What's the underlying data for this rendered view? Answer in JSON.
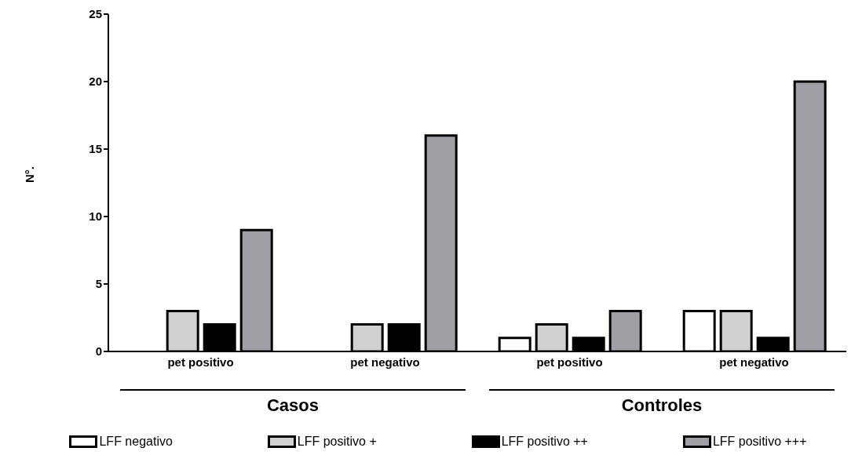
{
  "chart_data": {
    "type": "bar",
    "ylabel": "N°.",
    "categories": [
      "pet positivo",
      "pet negativo",
      "pet positivo",
      "pet negativo"
    ],
    "series": [
      {
        "name": "LFF negativo",
        "color": "#ffffff",
        "values": [
          0,
          0,
          1,
          3
        ]
      },
      {
        "name": "LFF positivo +",
        "color": "#d0d0d0",
        "values": [
          3,
          2,
          2,
          3
        ]
      },
      {
        "name": "LFF positivo ++",
        "color": "#000000",
        "values": [
          2,
          2,
          1,
          1
        ]
      },
      {
        "name": "LFF positivo +++",
        "color": "#a0a0a4",
        "values": [
          9,
          16,
          3,
          20
        ]
      }
    ],
    "ylim": [
      0,
      25
    ],
    "yticks": [
      0,
      5,
      10,
      15,
      20,
      25
    ],
    "legend": "bottom",
    "annotations": [
      "Casos",
      "Controles"
    ]
  }
}
